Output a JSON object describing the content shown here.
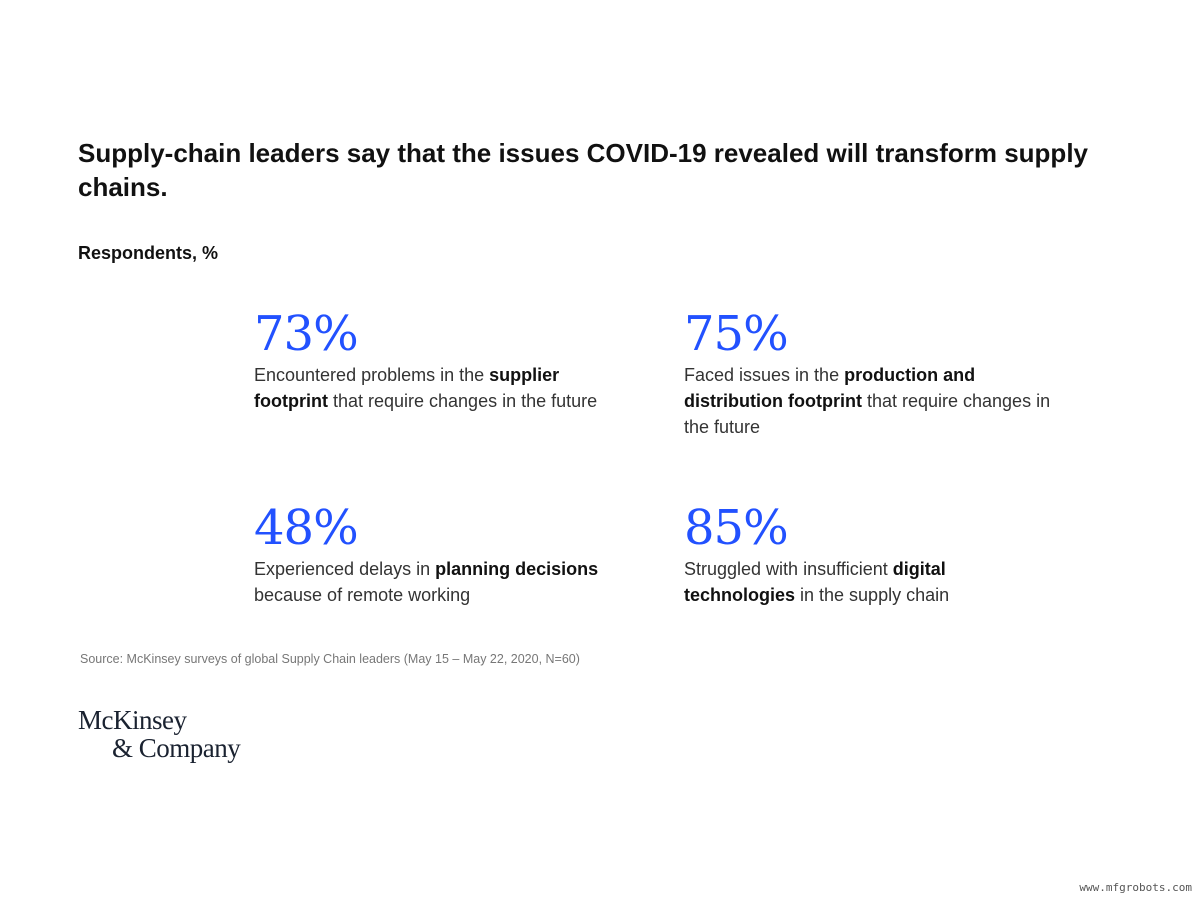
{
  "title": "Supply-chain leaders say that the issues COVID-19 revealed will transform supply chains.",
  "subtitle": "Respondents, %",
  "accent_color": "#2251ff",
  "stats": [
    {
      "value": "73%",
      "parts": [
        {
          "text": "Encountered problems in the ",
          "bold": false
        },
        {
          "text": "supplier footprint",
          "bold": true
        },
        {
          "text": " that require changes in the future",
          "bold": false
        }
      ]
    },
    {
      "value": "75%",
      "parts": [
        {
          "text": "Faced issues in the ",
          "bold": false
        },
        {
          "text": "production and distribution footprint",
          "bold": true
        },
        {
          "text": " that require changes in the future",
          "bold": false
        }
      ]
    },
    {
      "value": "48%",
      "parts": [
        {
          "text": "Experienced delays in ",
          "bold": false
        },
        {
          "text": "planning decisions",
          "bold": true
        },
        {
          "text": " because of remote working",
          "bold": false
        }
      ]
    },
    {
      "value": "85%",
      "parts": [
        {
          "text": "Struggled with insufficient ",
          "bold": false
        },
        {
          "text": "digital technologies",
          "bold": true
        },
        {
          "text": " in the supply chain",
          "bold": false
        }
      ]
    }
  ],
  "source": "Source: McKinsey surveys of global Supply Chain leaders (May 15 – May 22, 2020, N=60)",
  "logo": {
    "line1": "McKinsey",
    "line2": "& Company"
  },
  "watermark": "www.mfgrobots.com"
}
